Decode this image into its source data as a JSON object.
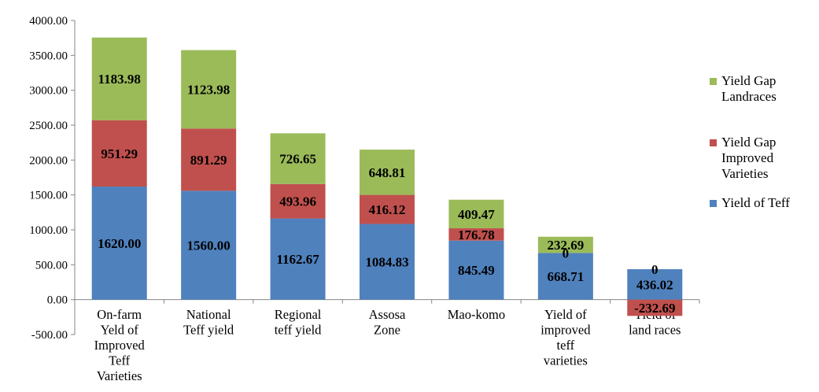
{
  "chart_data": {
    "type": "bar",
    "stacked": true,
    "title": "",
    "xlabel": "",
    "ylabel": "",
    "ylim": [
      -500,
      4000
    ],
    "yticks": [
      "4000.00",
      "3500.00",
      "3000.00",
      "2500.00",
      "2000.00",
      "1500.00",
      "1000.00",
      "500.00",
      "0.00",
      "-500.00"
    ],
    "grid": false,
    "legend_position": "right",
    "categories": [
      [
        "On-farm",
        "Yeld of",
        "Improved",
        "Teff",
        "Varieties"
      ],
      [
        "National",
        "Teff yield"
      ],
      [
        "Regional",
        "teff yield"
      ],
      [
        "Assosa",
        "Zone"
      ],
      [
        "Mao-komo"
      ],
      [
        "Yield of",
        "improved",
        "teff",
        "varieties"
      ],
      [
        "Yield of",
        "land races"
      ]
    ],
    "series": [
      {
        "name": [
          "Yield of Teff"
        ],
        "color": "#4f81bd",
        "values": [
          1620.0,
          1560.0,
          1162.67,
          1084.83,
          845.49,
          668.71,
          436.02
        ],
        "labels": [
          "1620.00",
          "1560.00",
          "1162.67",
          "1084.83",
          "845.49",
          "668.71",
          "436.02"
        ]
      },
      {
        "name": [
          "Yield Gap",
          "Improved",
          "Varieties"
        ],
        "color": "#c0504d",
        "values": [
          951.29,
          891.29,
          493.96,
          416.12,
          176.78,
          0,
          -232.69
        ],
        "labels": [
          "951.29",
          "891.29",
          "493.96",
          "416.12",
          "176.78",
          "0",
          "-232.69"
        ]
      },
      {
        "name": [
          "Yield Gap",
          "Landraces"
        ],
        "color": "#9bbb59",
        "values": [
          1183.98,
          1123.98,
          726.65,
          648.81,
          409.47,
          232.69,
          0
        ],
        "labels": [
          "1183.98",
          "1123.98",
          "726.65",
          "648.81",
          "409.47",
          "232.69",
          "0"
        ]
      }
    ]
  }
}
